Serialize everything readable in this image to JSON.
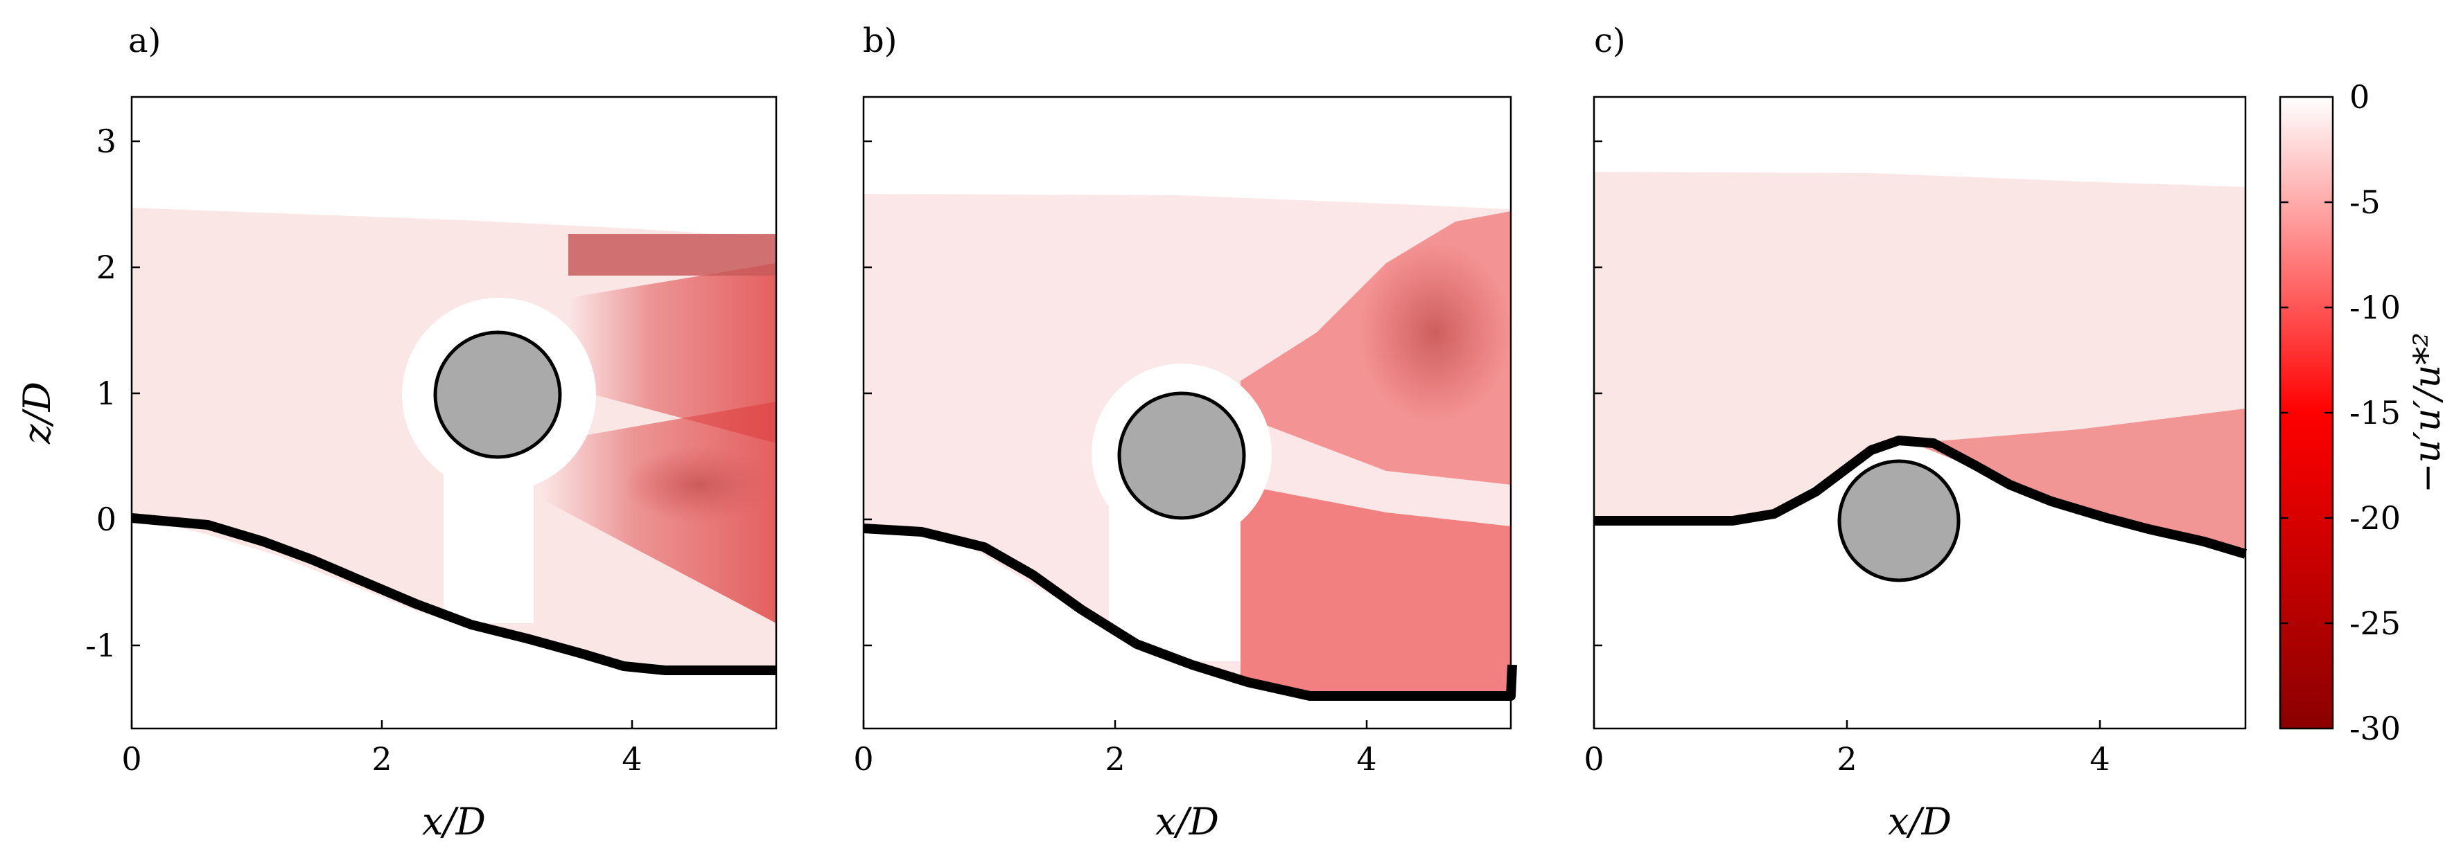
{
  "chart_data": {
    "type": "heatmap",
    "panels": [
      {
        "label": "a)",
        "xlabel": "x/D",
        "ylabel": "z/D",
        "xlim": [
          0,
          5.15
        ],
        "ylim": [
          -1.65,
          3.3
        ],
        "xticks": [
          0,
          2,
          4
        ],
        "yticks": [
          -1,
          0,
          1,
          2,
          3
        ],
        "cylinder": {
          "cx": 2.9,
          "cz": 1.0,
          "r": 0.5
        },
        "bed_profile": [
          [
            0,
            0
          ],
          [
            0.5,
            -0.04
          ],
          [
            1.0,
            -0.13
          ],
          [
            1.5,
            -0.3
          ],
          [
            2.0,
            -0.52
          ],
          [
            2.5,
            -0.73
          ],
          [
            3.0,
            -0.9
          ],
          [
            3.5,
            -1.05
          ],
          [
            3.9,
            -1.18
          ],
          [
            4.25,
            -1.22
          ],
          [
            5.15,
            -1.22
          ]
        ],
        "top_profile": [
          [
            0,
            2.47
          ],
          [
            1.2,
            2.39
          ],
          [
            2.2,
            2.33
          ],
          [
            3.5,
            2.3
          ],
          [
            3.5,
            2.25
          ],
          [
            5.15,
            2.2
          ]
        ]
      },
      {
        "label": "b)",
        "xlabel": "x/D",
        "ylabel": "",
        "xlim": [
          0,
          5.15
        ],
        "ylim": [
          -1.65,
          3.3
        ],
        "xticks": [
          0,
          2,
          4
        ],
        "yticks": [],
        "cylinder": {
          "cx": 2.55,
          "cz": 0.5,
          "r": 0.5
        },
        "bed_profile": [
          [
            0,
            -0.07
          ],
          [
            0.5,
            -0.1
          ],
          [
            1.0,
            -0.2
          ],
          [
            1.5,
            -0.5
          ],
          [
            2.0,
            -0.8
          ],
          [
            2.5,
            -1.05
          ],
          [
            3.0,
            -1.22
          ],
          [
            3.6,
            -1.4
          ],
          [
            5.15,
            -1.4
          ],
          [
            5.15,
            -1.2
          ]
        ],
        "top_profile": [
          [
            0,
            2.57
          ],
          [
            1.5,
            2.55
          ],
          [
            2.6,
            2.5
          ],
          [
            4.0,
            2.44
          ],
          [
            5.15,
            2.44
          ]
        ]
      },
      {
        "label": "c)",
        "xlabel": "x/D",
        "ylabel": "",
        "xlim": [
          0,
          5.15
        ],
        "ylim": [
          -1.65,
          3.3
        ],
        "xticks": [
          0,
          2,
          4
        ],
        "yticks": [],
        "cylinder": {
          "cx": 2.4,
          "cz": 0.0,
          "r": 0.5
        },
        "bed_profile": [
          [
            0,
            0
          ],
          [
            1.1,
            0.0
          ],
          [
            1.5,
            0.1
          ],
          [
            1.8,
            0.3
          ],
          [
            2.1,
            0.5
          ],
          [
            2.35,
            0.62
          ],
          [
            2.7,
            0.58
          ],
          [
            3.0,
            0.4
          ],
          [
            3.5,
            0.1
          ],
          [
            4.0,
            -0.05
          ],
          [
            4.5,
            -0.15
          ],
          [
            5.15,
            -0.32
          ]
        ],
        "top_profile": [
          [
            0,
            2.75
          ],
          [
            1.5,
            2.72
          ],
          [
            3.0,
            2.65
          ],
          [
            5.15,
            2.6
          ]
        ]
      }
    ],
    "colorbar": {
      "label": "−u′u′/u*²",
      "min": -30,
      "max": 0,
      "ticks": [
        0,
        -5,
        -10,
        -15,
        -20,
        -25,
        -30
      ],
      "colors": {
        "max": "#ffffff",
        "mid": "#ff0000",
        "min": "#8b0000"
      }
    }
  }
}
